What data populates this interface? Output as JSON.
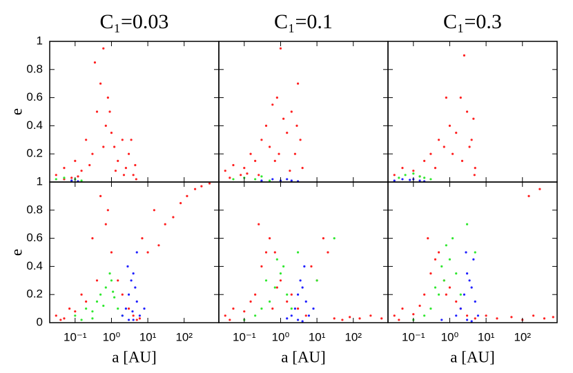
{
  "chart_data": [
    {
      "type": "scatter",
      "title": "C₁=0.03",
      "xscale": "log",
      "xlim": [
        0.02,
        900
      ],
      "ylim": [
        0,
        1
      ],
      "xticks": [
        0.1,
        1,
        10,
        100
      ],
      "yticks": [
        0.2,
        0.4,
        0.6,
        0.8,
        1
      ],
      "ylabel": "e",
      "series": [
        {
          "name": "red",
          "color": "#ff2020",
          "x": [
            0.03,
            0.05,
            0.08,
            0.1,
            0.15,
            0.2,
            0.3,
            0.4,
            0.5,
            0.6,
            0.7,
            0.8,
            1,
            1.2,
            1.5,
            2,
            2.5,
            3,
            4,
            4.5,
            0.25,
            0.35,
            0.6,
            0.9,
            1.3,
            2.2,
            3.5,
            4.8,
            0.05,
            0.12
          ],
          "values": [
            0.05,
            0.1,
            0.03,
            0.15,
            0.08,
            0.3,
            0.2,
            0.5,
            0.7,
            0.95,
            0.4,
            0.6,
            0.35,
            0.25,
            0.15,
            0.3,
            0.1,
            0.2,
            0.05,
            0.12,
            0.12,
            0.85,
            0.25,
            0.5,
            0.08,
            0.05,
            0.3,
            0.02,
            0.02,
            0.04
          ]
        },
        {
          "name": "green",
          "color": "#30e830",
          "x": [
            0.03,
            0.05,
            0.08,
            0.1,
            0.15
          ],
          "values": [
            0.02,
            0.03,
            0.01,
            0.02,
            0.01
          ]
        },
        {
          "name": "blue",
          "color": "#2020ff",
          "x": [
            0.08,
            0.12
          ],
          "values": [
            0.01,
            0.005
          ]
        }
      ]
    },
    {
      "type": "scatter",
      "title": "C₁=0.1",
      "xscale": "log",
      "xlim": [
        0.02,
        900
      ],
      "ylim": [
        0,
        1
      ],
      "xticks": [
        0.1,
        1,
        10,
        100
      ],
      "yticks": [
        0.2,
        0.4,
        0.6,
        0.8,
        1
      ],
      "series": [
        {
          "name": "red",
          "color": "#ff2020",
          "x": [
            0.03,
            0.05,
            0.08,
            0.1,
            0.15,
            0.2,
            0.3,
            0.4,
            0.5,
            0.6,
            0.8,
            1,
            1.2,
            1.5,
            2,
            2.5,
            3,
            3.5,
            4,
            0.25,
            0.7,
            1.8,
            2.8,
            0.04,
            0.12,
            0.9
          ],
          "values": [
            0.08,
            0.12,
            0.05,
            0.1,
            0.2,
            0.15,
            0.3,
            0.4,
            0.25,
            0.55,
            0.6,
            0.95,
            0.45,
            0.35,
            0.5,
            0.2,
            0.7,
            0.3,
            0.1,
            0.05,
            0.15,
            0.08,
            0.4,
            0.03,
            0.06,
            0.2
          ]
        },
        {
          "name": "green",
          "color": "#30e830",
          "x": [
            0.05,
            0.1,
            0.2,
            0.3,
            0.5
          ],
          "values": [
            0.02,
            0.03,
            0.02,
            0.04,
            0.01
          ]
        },
        {
          "name": "blue",
          "color": "#2020ff",
          "x": [
            0.3,
            0.6,
            1,
            1.5,
            2,
            3
          ],
          "values": [
            0.01,
            0.02,
            0.01,
            0.02,
            0.01,
            0.005
          ]
        }
      ]
    },
    {
      "type": "scatter",
      "title": "C₁=0.3",
      "xscale": "log",
      "xlim": [
        0.02,
        900
      ],
      "ylim": [
        0,
        1
      ],
      "xticks": [
        0.1,
        1,
        10,
        100
      ],
      "yticks": [
        0.2,
        0.4,
        0.6,
        0.8,
        1
      ],
      "series": [
        {
          "name": "red",
          "color": "#ff2020",
          "x": [
            0.03,
            0.05,
            0.1,
            0.2,
            0.3,
            0.5,
            0.7,
            1,
            1.5,
            2,
            2.5,
            3,
            4,
            4.5,
            5,
            0.4,
            0.8,
            1.2,
            3.5,
            0.15,
            4.8,
            2.2
          ],
          "values": [
            0.05,
            0.1,
            0.08,
            0.15,
            0.2,
            0.3,
            0.25,
            0.4,
            0.35,
            0.6,
            0.9,
            0.5,
            0.3,
            0.45,
            0.1,
            0.1,
            0.6,
            0.2,
            0.25,
            0.04,
            0.05,
            0.15
          ]
        },
        {
          "name": "green",
          "color": "#30e830",
          "x": [
            0.04,
            0.06,
            0.1,
            0.15,
            0.2,
            0.3
          ],
          "values": [
            0.03,
            0.05,
            0.06,
            0.04,
            0.03,
            0.02
          ]
        },
        {
          "name": "blue",
          "color": "#2020ff",
          "x": [
            0.03,
            0.05,
            0.08,
            0.1,
            0.15,
            0.2
          ],
          "values": [
            0.01,
            0.02,
            0.015,
            0.02,
            0.01,
            0.005
          ]
        }
      ]
    },
    {
      "type": "scatter",
      "xscale": "log",
      "xlim": [
        0.02,
        900
      ],
      "ylim": [
        0,
        1
      ],
      "xticks": [
        {
          "value": 0.1,
          "label": "10⁻¹"
        },
        {
          "value": 1,
          "label": "10⁰"
        },
        {
          "value": 10,
          "label": "10¹"
        },
        {
          "value": 100,
          "label": "10²"
        }
      ],
      "yticks": [
        0,
        0.2,
        0.4,
        0.6,
        0.8,
        1
      ],
      "xlabel": "a [AU]",
      "ylabel": "e",
      "series": [
        {
          "name": "red",
          "color": "#ff2020",
          "x": [
            0.03,
            0.05,
            0.1,
            0.2,
            0.3,
            0.5,
            0.7,
            1,
            1.5,
            2,
            3,
            5,
            7,
            10,
            15,
            20,
            30,
            50,
            80,
            120,
            200,
            300,
            500,
            0.04,
            0.15,
            0.4,
            0.8,
            4,
            6,
            0.07
          ],
          "values": [
            0.05,
            0.03,
            0.08,
            0.15,
            0.6,
            0.9,
            0.7,
            0.5,
            0.3,
            0.2,
            0.1,
            0.02,
            0.6,
            0.5,
            0.8,
            0.55,
            0.7,
            0.75,
            0.85,
            0.9,
            0.95,
            0.97,
            0.99,
            0.02,
            0.2,
            0.3,
            0.8,
            0.05,
            0.03,
            0.1
          ]
        },
        {
          "name": "green",
          "color": "#30e830",
          "x": [
            0.1,
            0.2,
            0.3,
            0.4,
            0.5,
            0.7,
            1,
            1.2,
            1.5,
            2,
            0.3,
            0.6,
            0.9,
            1.1,
            0.15
          ],
          "values": [
            0.05,
            0.1,
            0.08,
            0.15,
            0.2,
            0.25,
            0.3,
            0.18,
            0.1,
            0.05,
            0.03,
            0.12,
            0.35,
            0.22,
            0.02
          ]
        },
        {
          "name": "blue",
          "color": "#2020ff",
          "x": [
            2,
            2.5,
            3,
            3.5,
            4,
            4.5,
            5,
            6,
            3,
            4,
            5,
            8,
            2.8,
            3.8
          ],
          "values": [
            0.05,
            0.1,
            0.2,
            0.3,
            0.35,
            0.25,
            0.15,
            0.05,
            0.02,
            0.02,
            0.5,
            0.1,
            0.4,
            0.08
          ]
        }
      ]
    },
    {
      "type": "scatter",
      "xscale": "log",
      "xlim": [
        0.02,
        900
      ],
      "ylim": [
        0,
        1
      ],
      "xticks": [
        {
          "value": 0.1,
          "label": "10⁻¹"
        },
        {
          "value": 1,
          "label": "10⁰"
        },
        {
          "value": 10,
          "label": "10¹"
        },
        {
          "value": 100,
          "label": "10²"
        }
      ],
      "yticks": [
        0,
        0.2,
        0.4,
        0.6,
        0.8,
        1
      ],
      "xlabel": "a [AU]",
      "series": [
        {
          "name": "red",
          "color": "#ff2020",
          "x": [
            0.03,
            0.05,
            0.1,
            0.2,
            0.3,
            0.5,
            0.7,
            1,
            1.5,
            2,
            3,
            5,
            7,
            10,
            15,
            20,
            30,
            50,
            80,
            150,
            300,
            600,
            0.04,
            0.15,
            0.4,
            0.8,
            0.25,
            0.6
          ],
          "values": [
            0.05,
            0.1,
            0.08,
            0.2,
            0.4,
            0.6,
            0.5,
            0.3,
            0.15,
            0.2,
            0.1,
            0.05,
            0.4,
            0.3,
            0.6,
            0.5,
            0.03,
            0.02,
            0.04,
            0.03,
            0.05,
            0.03,
            0.02,
            0.15,
            0.5,
            0.25,
            0.7,
            0.1
          ]
        },
        {
          "name": "green",
          "color": "#30e830",
          "x": [
            0.1,
            0.2,
            0.3,
            0.5,
            0.7,
            1,
            1.5,
            2,
            0.4,
            0.8,
            1.2,
            3,
            10,
            30
          ],
          "values": [
            0.02,
            0.05,
            0.1,
            0.15,
            0.25,
            0.35,
            0.2,
            0.1,
            0.3,
            0.45,
            0.4,
            0.5,
            0.3,
            0.6
          ]
        },
        {
          "name": "blue",
          "color": "#2020ff",
          "x": [
            2,
            2.5,
            3,
            3.5,
            4,
            5,
            6,
            3,
            4,
            1.5,
            4.5,
            8
          ],
          "values": [
            0.05,
            0.1,
            0.2,
            0.3,
            0.25,
            0.15,
            0.05,
            0.02,
            0.01,
            0.03,
            0.4,
            0.1
          ]
        }
      ]
    },
    {
      "type": "scatter",
      "xscale": "log",
      "xlim": [
        0.02,
        900
      ],
      "ylim": [
        0,
        1
      ],
      "xticks": [
        {
          "value": 0.1,
          "label": "10⁻¹"
        },
        {
          "value": 1,
          "label": "10⁰"
        },
        {
          "value": 10,
          "label": "10¹"
        },
        {
          "value": 100,
          "label": "10²"
        }
      ],
      "yticks": [
        0,
        0.2,
        0.4,
        0.6,
        0.8,
        1
      ],
      "xlabel": "a [AU]",
      "series": [
        {
          "name": "red",
          "color": "#ff2020",
          "x": [
            0.03,
            0.05,
            0.1,
            0.2,
            0.3,
            0.5,
            0.7,
            1,
            1.5,
            2,
            3,
            5,
            10,
            20,
            50,
            100,
            200,
            400,
            700,
            0.04,
            0.15,
            0.4,
            0.8,
            0.25,
            150,
            300
          ],
          "values": [
            0.05,
            0.1,
            0.06,
            0.2,
            0.35,
            0.5,
            0.3,
            0.25,
            0.15,
            0.1,
            0.05,
            0.03,
            0.05,
            0.03,
            0.04,
            0.02,
            0.05,
            0.03,
            0.04,
            0.02,
            0.12,
            0.45,
            0.2,
            0.6,
            0.9,
            0.95
          ]
        },
        {
          "name": "green",
          "color": "#30e830",
          "x": [
            0.1,
            0.2,
            0.3,
            0.5,
            0.7,
            1,
            1.5,
            2,
            0.4,
            0.8,
            1.2,
            3,
            0.6,
            5
          ],
          "values": [
            0.02,
            0.05,
            0.1,
            0.2,
            0.3,
            0.45,
            0.35,
            0.2,
            0.25,
            0.55,
            0.6,
            0.7,
            0.4,
            0.5
          ]
        },
        {
          "name": "blue",
          "color": "#2020ff",
          "x": [
            1.5,
            2,
            2.5,
            3,
            3.5,
            4,
            5,
            6,
            3,
            4,
            4.5,
            2.8,
            0.6
          ],
          "values": [
            0.05,
            0.1,
            0.2,
            0.35,
            0.3,
            0.25,
            0.15,
            0.05,
            0.02,
            0.01,
            0.45,
            0.5,
            0.02
          ]
        }
      ]
    }
  ]
}
